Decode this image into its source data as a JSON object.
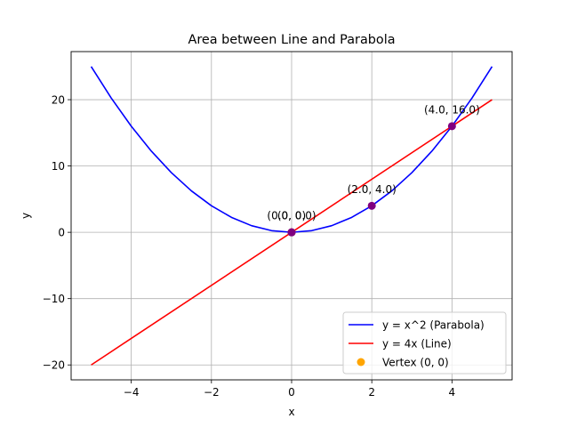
{
  "chart_data": {
    "type": "line",
    "title": "Area between Line and Parabola",
    "xlabel": "x",
    "ylabel": "y",
    "xlim": [
      -5.5,
      5.5
    ],
    "ylim": [
      -22.25,
      27.25
    ],
    "xticks": [
      -4,
      -2,
      0,
      2,
      4
    ],
    "xtick_labels": [
      "−4",
      "−2",
      "0",
      "2",
      "4"
    ],
    "yticks": [
      -20,
      -10,
      0,
      10,
      20
    ],
    "ytick_labels": [
      "−20",
      "−10",
      "0",
      "10",
      "20"
    ],
    "grid": true,
    "legend_position": "lower-right",
    "series": [
      {
        "name": "y = x^2 (Parabola)",
        "color": "#0000ff",
        "x": [
          -5,
          -4.5,
          -4,
          -3.5,
          -3,
          -2.5,
          -2,
          -1.5,
          -1,
          -0.5,
          0,
          0.5,
          1,
          1.5,
          2,
          2.5,
          3,
          3.5,
          4,
          4.5,
          5
        ],
        "y": [
          25,
          20.25,
          16,
          12.25,
          9,
          6.25,
          4,
          2.25,
          1,
          0.25,
          0,
          0.25,
          1,
          2.25,
          4,
          6.25,
          9,
          12.25,
          16,
          20.25,
          25
        ]
      },
      {
        "name": "y = 4x (Line)",
        "color": "#ff0000",
        "x": [
          -5,
          5
        ],
        "y": [
          -20,
          20
        ]
      }
    ],
    "points": [
      {
        "x": 0,
        "y": 0,
        "label": "(0.0, 0.0)",
        "color": "#800080"
      },
      {
        "x": 0,
        "y": 0,
        "label": "(0, 0)",
        "color": "#800080"
      },
      {
        "x": 2,
        "y": 4,
        "label": "(2.0, 4.0)",
        "color": "#800080"
      },
      {
        "x": 4,
        "y": 16,
        "label": "(4.0, 16.0)",
        "color": "#800080"
      }
    ],
    "vertex": {
      "x": 0,
      "y": 0,
      "name": "Vertex (0, 0)",
      "color": "#ffa500"
    }
  }
}
